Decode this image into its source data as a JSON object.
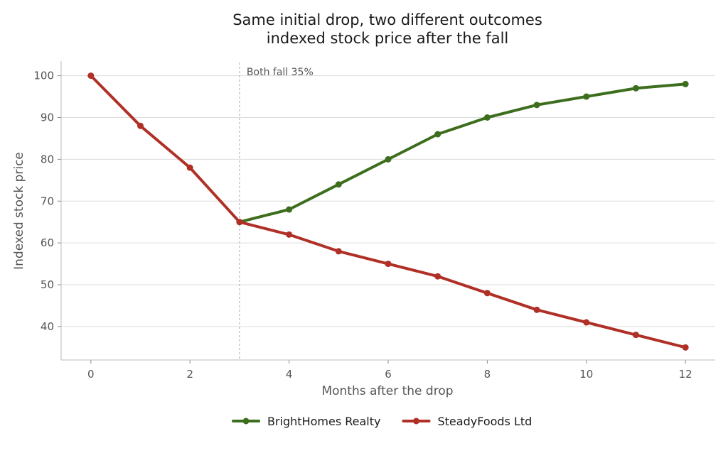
{
  "chart_data": {
    "type": "line",
    "title": "Same initial drop, two different outcomes",
    "subtitle": "indexed stock price after the fall",
    "xlabel": "Months after the drop",
    "ylabel": "Indexed stock price",
    "xlim": [
      -0.6,
      12.6
    ],
    "ylim": [
      32,
      103.5
    ],
    "xticks": [
      0,
      2,
      4,
      6,
      8,
      10,
      12
    ],
    "yticks": [
      40,
      50,
      60,
      70,
      80,
      90,
      100
    ],
    "grid": "horizontal",
    "legend_position": "bottom",
    "series": [
      {
        "name": "BrightHomes Realty",
        "color": "#3d6e1e",
        "x": [
          3,
          4,
          5,
          6,
          7,
          8,
          9,
          10,
          11,
          12
        ],
        "values": [
          65,
          68,
          74,
          80,
          86,
          90,
          93,
          95,
          97,
          98
        ]
      },
      {
        "name": "SteadyFoods Ltd",
        "color": "#b03027",
        "x": [
          0,
          1,
          2,
          3,
          4,
          5,
          6,
          7,
          8,
          9,
          10,
          11,
          12
        ],
        "values": [
          100,
          88,
          78,
          65,
          62,
          58,
          55,
          52,
          48,
          44,
          41,
          38,
          35
        ]
      }
    ],
    "annotations": [
      {
        "x": 3,
        "text": "Both fall 35%",
        "style": "dotted vertical line"
      }
    ]
  }
}
